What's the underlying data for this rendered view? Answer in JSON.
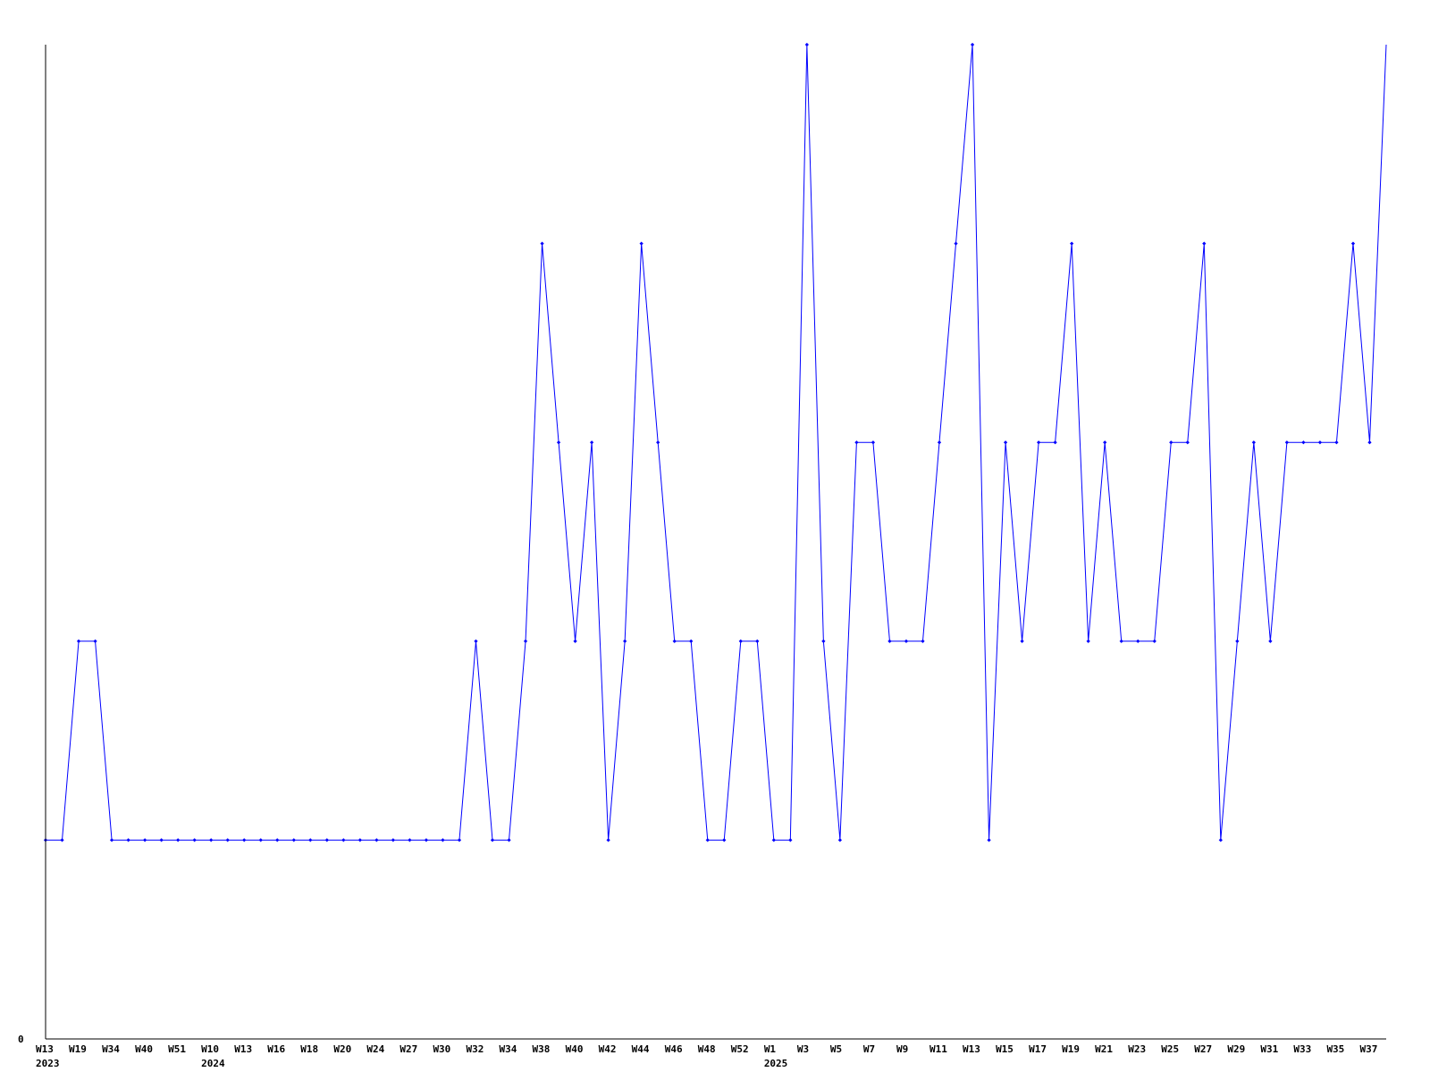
{
  "chart_data": {
    "type": "line",
    "title": "",
    "xlabel": "",
    "ylabel": "",
    "ylim": [
      0,
      5
    ],
    "y_tick_labels": [
      "0"
    ],
    "grid": false,
    "line_color": "#0000ff",
    "axis_color": "#000000",
    "x_tick_labels": [
      {
        "index": 0,
        "week": "W13",
        "year": "2023"
      },
      {
        "index": 2,
        "week": "W19"
      },
      {
        "index": 4,
        "week": "W34"
      },
      {
        "index": 6,
        "week": "W40"
      },
      {
        "index": 8,
        "week": "W51"
      },
      {
        "index": 10,
        "week": "W10",
        "year": "2024"
      },
      {
        "index": 12,
        "week": "W13"
      },
      {
        "index": 14,
        "week": "W16"
      },
      {
        "index": 16,
        "week": "W18"
      },
      {
        "index": 18,
        "week": "W20"
      },
      {
        "index": 20,
        "week": "W24"
      },
      {
        "index": 22,
        "week": "W27"
      },
      {
        "index": 24,
        "week": "W30"
      },
      {
        "index": 26,
        "week": "W32"
      },
      {
        "index": 28,
        "week": "W34"
      },
      {
        "index": 30,
        "week": "W38"
      },
      {
        "index": 32,
        "week": "W40"
      },
      {
        "index": 34,
        "week": "W42"
      },
      {
        "index": 36,
        "week": "W44"
      },
      {
        "index": 38,
        "week": "W46"
      },
      {
        "index": 40,
        "week": "W48"
      },
      {
        "index": 42,
        "week": "W52"
      },
      {
        "index": 44,
        "week": "W1",
        "year": "2025"
      },
      {
        "index": 46,
        "week": "W3"
      },
      {
        "index": 48,
        "week": "W5"
      },
      {
        "index": 50,
        "week": "W7"
      },
      {
        "index": 52,
        "week": "W9"
      },
      {
        "index": 54,
        "week": "W11"
      },
      {
        "index": 56,
        "week": "W13"
      },
      {
        "index": 58,
        "week": "W15"
      },
      {
        "index": 60,
        "week": "W17"
      },
      {
        "index": 62,
        "week": "W19"
      },
      {
        "index": 64,
        "week": "W21"
      },
      {
        "index": 66,
        "week": "W23"
      },
      {
        "index": 68,
        "week": "W25"
      },
      {
        "index": 70,
        "week": "W27"
      },
      {
        "index": 72,
        "week": "W29"
      },
      {
        "index": 74,
        "week": "W31"
      },
      {
        "index": 76,
        "week": "W33"
      },
      {
        "index": 78,
        "week": "W35"
      },
      {
        "index": 80,
        "week": "W37"
      }
    ],
    "values": [
      1,
      1,
      2,
      2,
      1,
      1,
      1,
      1,
      1,
      1,
      1,
      1,
      1,
      1,
      1,
      1,
      1,
      1,
      1,
      1,
      1,
      1,
      1,
      1,
      1,
      1,
      2,
      1,
      1,
      2,
      4,
      3,
      2,
      3,
      1,
      2,
      4,
      3,
      2,
      2,
      1,
      1,
      2,
      2,
      1,
      1,
      5,
      2,
      1,
      3,
      3,
      2,
      2,
      2,
      3,
      4,
      5,
      1,
      3,
      2,
      3,
      3,
      4,
      2,
      3,
      2,
      2,
      2,
      3,
      3,
      4,
      1,
      2,
      3,
      2,
      3,
      3,
      3,
      3,
      4,
      3,
      5
    ]
  }
}
